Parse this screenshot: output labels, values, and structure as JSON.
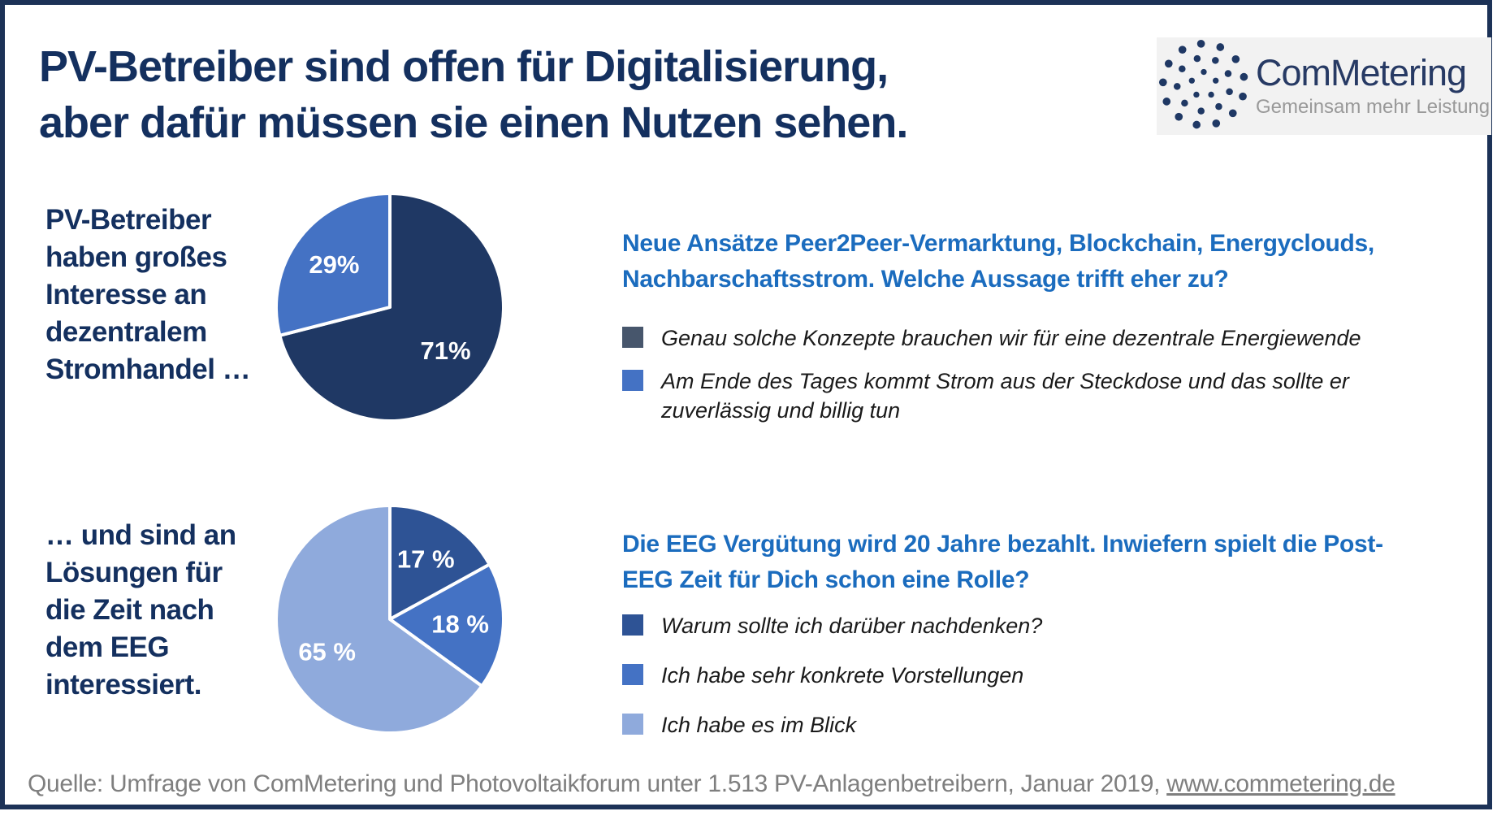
{
  "title": {
    "line1": "PV-Betreiber sind offen für Digitalisierung,",
    "line2": "aber dafür müssen sie einen Nutzen sehen."
  },
  "logo": {
    "name": "ComMetering",
    "tagline": "Gemeinsam mehr Leistung"
  },
  "rows": [
    {
      "label": "PV-Betreiber\nhaben großes\nInteresse an\ndezentralem\nStromhandel …",
      "question": "Neue Ansätze Peer2Peer-Vermarktung, Blockchain, Energyclouds,\nNachbarschaftsstrom. Welche Aussage trifft eher zu?",
      "legend": [
        {
          "color": "#47566C",
          "text": "Genau solche Konzepte brauchen wir für eine dezentrale Energiewende"
        },
        {
          "color": "#4472C4",
          "text": "Am Ende des Tages kommt Strom aus der Steckdose und das sollte er\nzuverlässig und billig tun"
        }
      ]
    },
    {
      "label": "… und sind an\nLösungen für\ndie Zeit nach\ndem EEG\ninteressiert.",
      "question": "Die EEG Vergütung wird 20 Jahre bezahlt. Inwiefern spielt die Post-\nEEG Zeit für Dich schon eine Rolle?",
      "legend": [
        {
          "color": "#2E5395",
          "text": "Warum sollte ich darüber nachdenken?"
        },
        {
          "color": "#4472C4",
          "text": "Ich habe sehr konkrete Vorstellungen"
        },
        {
          "color": "#8FAADC",
          "text": "Ich habe es im Blick"
        }
      ]
    }
  ],
  "chart_data": [
    {
      "type": "pie",
      "caption": "PV-Betreiber haben großes Interesse an dezentralem Stromhandel …",
      "start_angle_deg": 0,
      "direction": "clockwise",
      "slices": [
        {
          "label": "71%",
          "value": 71,
          "color": "#1F3864",
          "meaning": "Genau solche Konzepte brauchen wir für eine dezentrale Energiewende"
        },
        {
          "label": "29%",
          "value": 29,
          "color": "#4472C4",
          "meaning": "Am Ende des Tages kommt Strom aus der Steckdose und das sollte er zuverlässig und billig tun"
        }
      ]
    },
    {
      "type": "pie",
      "caption": "… und sind an Lösungen für die Zeit nach dem EEG interessiert.",
      "start_angle_deg": 0,
      "direction": "clockwise",
      "slices": [
        {
          "label": "17 %",
          "value": 17,
          "color": "#2E5395",
          "meaning": "Warum sollte ich darüber nachdenken?"
        },
        {
          "label": "18 %",
          "value": 18,
          "color": "#4472C4",
          "meaning": "Ich habe sehr konkrete Vorstellungen"
        },
        {
          "label": "65 %",
          "value": 65,
          "color": "#8FAADC",
          "meaning": "Ich habe es im Blick"
        }
      ]
    }
  ],
  "footer": {
    "text_before_link": "Quelle: Umfrage von ComMetering und Photovoltaikforum unter 1.513 PV-Anlagenbetreibern, Januar 2019, ",
    "link": "www.commetering.de"
  },
  "colors": {
    "border_navy": "#1C3257",
    "title_navy": "#14305F",
    "question_blue": "#1B6CBE",
    "pie_dark_navy": "#1F3864",
    "pie_medium_blue": "#4472C4",
    "pie_dark_blue2": "#2E5395",
    "pie_light_blue": "#8FAADC",
    "legend_slate": "#47566C",
    "footer_gray": "#7F7F7F",
    "logo_navy": "#273A64"
  }
}
